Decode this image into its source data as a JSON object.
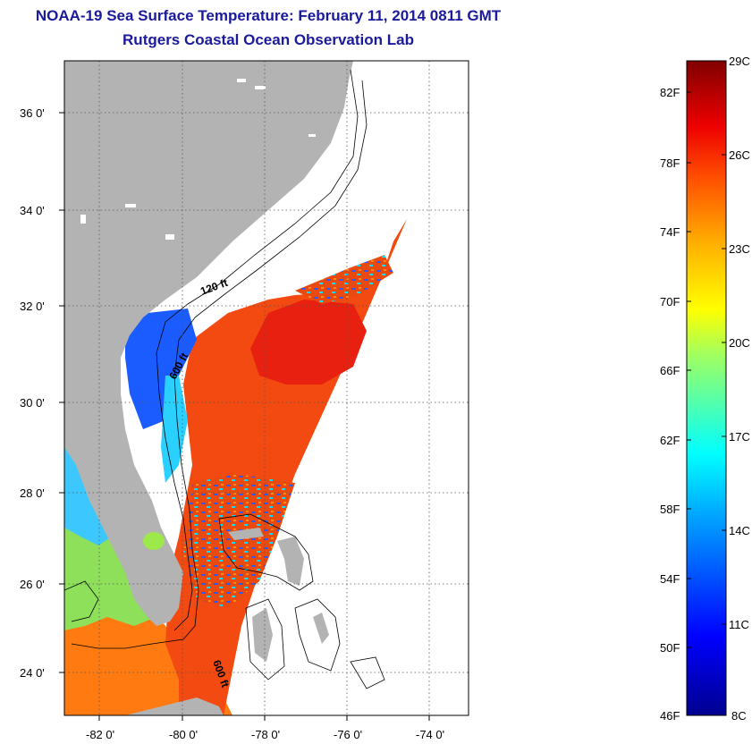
{
  "header": {
    "title": "NOAA-19 Sea Surface Temperature:  February 11, 2014 0811 GMT",
    "subtitle": "Rutgers Coastal Ocean Observation Lab"
  },
  "map": {
    "lat_labels": [
      "36 0'",
      "34 0'",
      "32 0'",
      "30 0'",
      "28 0'",
      "26 0'",
      "24 0'"
    ],
    "lon_labels": [
      "-82 0'",
      "-80 0'",
      "-78 0'",
      "-76 0'",
      "-74 0'"
    ],
    "contours": [
      "120 ft",
      "600 ft",
      "600 ft"
    ],
    "colors": {
      "land": "#b3b3b3",
      "no_data": "#ffffff"
    }
  },
  "colorbar": {
    "fahrenheit": [
      "82F",
      "78F",
      "74F",
      "70F",
      "66F",
      "62F",
      "58F",
      "54F",
      "50F",
      "46F"
    ],
    "celsius": [
      "29C",
      "26C",
      "23C",
      "20C",
      "17C",
      "14C",
      "11C",
      "8C"
    ],
    "range_c": [
      8,
      29
    ]
  }
}
